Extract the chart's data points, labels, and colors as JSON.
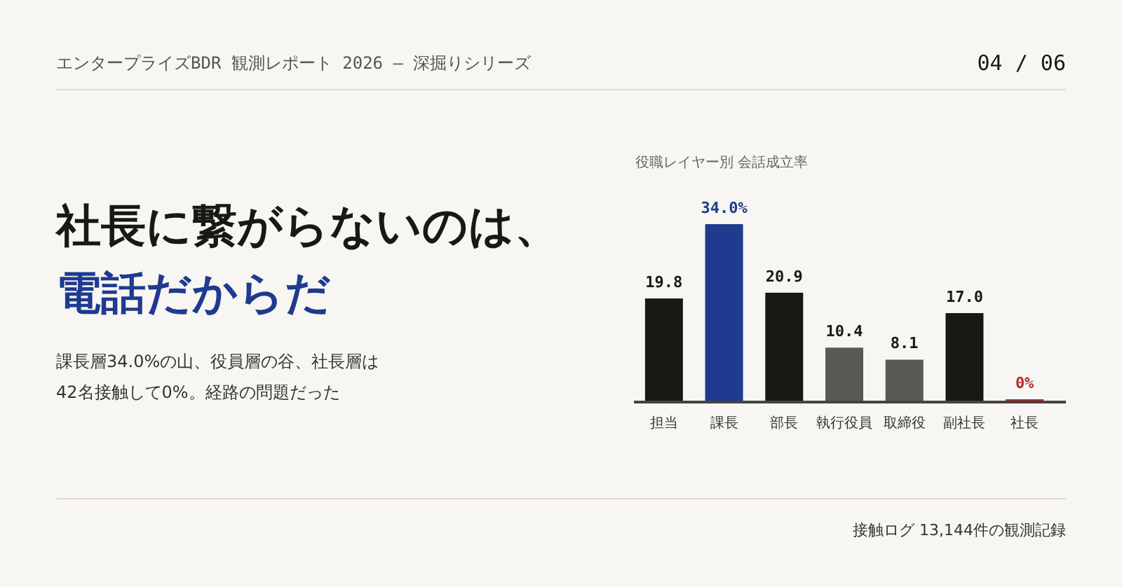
{
  "chart_data": {
    "type": "bar",
    "title": "社長に繋がらないのは、電話だからだ",
    "subtitle": "課長層34.0%の山、役員層の谷、社長層は42名接触して0%。経路の問題だった",
    "annotations": [
      "エンタープライズBDR 観測レポート 2026 — 深掘りシリーズ",
      "04 / 06",
      "役職レイヤー別 会話成立率",
      "接触ログ 13,144件の観測記録"
    ],
    "categories": [
      "担当",
      "課長",
      "部長",
      "執行役員",
      "取締役",
      "副社長",
      "社長"
    ],
    "values": [
      19.8,
      34.0,
      20.9,
      10.4,
      8.1,
      17.0,
      0
    ],
    "value_labels": [
      "19.8",
      "34.0%",
      "20.9",
      "10.4",
      "8.1",
      "17.0",
      "0%"
    ],
    "colors": [
      "#1a1814",
      "#1f3a8f",
      "#1a1814",
      "#5a5852",
      "#5a5852",
      "#1a1814",
      "#b02a2a"
    ]
  }
}
